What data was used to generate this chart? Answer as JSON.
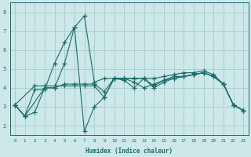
{
  "xlabel": "Humidex (Indice chaleur)",
  "bg_color": "#cce8e8",
  "grid_color": "#aad0ce",
  "line_color": "#1a6b6b",
  "series": [
    {
      "x": [
        0,
        1,
        2,
        3,
        4,
        5,
        6,
        7,
        8,
        9,
        10,
        11,
        12,
        13,
        14,
        15,
        16,
        17,
        18,
        19,
        20,
        21,
        22,
        23
      ],
      "y": [
        3.1,
        2.5,
        3.9,
        3.9,
        5.3,
        6.4,
        7.2,
        7.8,
        4.3,
        4.5,
        4.5,
        4.5,
        4.5,
        4.5,
        4.5,
        4.6,
        4.7,
        4.8,
        4.8,
        4.9,
        4.7,
        4.2,
        3.1,
        2.8
      ]
    },
    {
      "x": [
        0,
        1,
        3,
        4,
        5,
        6,
        7,
        8,
        9,
        10,
        11,
        12,
        13,
        14,
        15,
        16,
        17,
        18,
        19,
        20,
        21,
        22,
        23
      ],
      "y": [
        3.1,
        2.5,
        4.0,
        4.0,
        5.3,
        7.2,
        1.7,
        3.0,
        3.5,
        4.5,
        4.4,
        4.0,
        4.5,
        4.0,
        4.3,
        4.5,
        4.6,
        4.7,
        4.8,
        4.6,
        4.2,
        3.1,
        2.8
      ]
    },
    {
      "x": [
        0,
        2,
        3,
        4,
        5,
        6,
        7,
        8,
        9,
        10,
        11,
        12,
        13,
        14,
        15,
        16,
        17,
        18,
        19,
        20,
        21,
        22,
        23
      ],
      "y": [
        3.1,
        4.1,
        4.1,
        4.1,
        4.1,
        4.1,
        4.1,
        4.1,
        3.5,
        4.5,
        4.5,
        4.5,
        4.5,
        4.1,
        4.4,
        4.6,
        4.6,
        4.7,
        4.8,
        4.6,
        4.2,
        3.1,
        2.8
      ]
    },
    {
      "x": [
        0,
        1,
        2,
        3,
        4,
        5,
        6,
        7,
        8,
        9,
        10,
        11,
        12,
        13,
        14,
        15,
        16,
        17,
        18,
        19,
        20,
        21,
        22,
        23
      ],
      "y": [
        3.1,
        2.5,
        2.7,
        4.0,
        4.0,
        4.2,
        4.2,
        4.2,
        4.2,
        3.8,
        4.5,
        4.5,
        4.3,
        4.0,
        4.2,
        4.4,
        4.5,
        4.6,
        4.7,
        4.8,
        4.6,
        4.2,
        3.1,
        2.8
      ]
    }
  ],
  "ylim": [
    1.5,
    8.5
  ],
  "xlim": [
    -0.5,
    23.5
  ],
  "yticks": [
    2,
    3,
    4,
    5,
    6,
    7,
    8
  ],
  "xticks": [
    0,
    1,
    2,
    3,
    4,
    5,
    6,
    7,
    8,
    9,
    10,
    11,
    12,
    13,
    14,
    15,
    16,
    17,
    18,
    19,
    20,
    21,
    22,
    23
  ]
}
